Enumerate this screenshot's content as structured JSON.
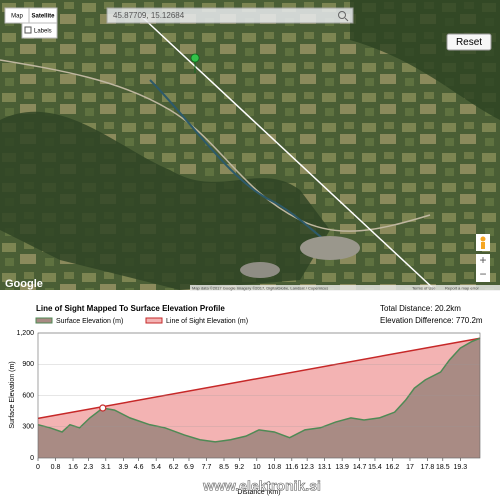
{
  "map": {
    "map_button": "Map",
    "satellite_button": "Satellite",
    "labels_checkbox": "Labels",
    "search": "45.87709, 15.12684",
    "reset_button": "Reset",
    "logo": "Google",
    "attribution": "Map data ©2017 Google Imagery ©2017, DigitalGlobe, Landsat / Copernicus",
    "terms": "Terms of Use",
    "report": "Report a map error"
  },
  "chart_data": {
    "type": "area",
    "title": "Line of Sight Mapped To Surface Elevation Profile",
    "total_distance": "Total Distance: 20.2km",
    "elevation_difference": "Elevation Difference: 770.2m",
    "x_label": "Distance (km)",
    "y_label": "Surface Elevation (m)",
    "xlim": [
      0,
      20.2
    ],
    "ylim": [
      0,
      1200
    ],
    "xticks": [
      0,
      0.8,
      1.6,
      2.3,
      3.1,
      3.9,
      4.6,
      5.4,
      6.2,
      6.9,
      7.7,
      8.5,
      9.2,
      10,
      10.8,
      11.6,
      12.3,
      13.1,
      13.9,
      14.7,
      15.4,
      16.2,
      17,
      17.8,
      18.5,
      19.3
    ],
    "yticks": [
      0,
      300,
      600,
      900,
      {
        "value": 1200,
        "label": "1,200"
      }
    ],
    "grid": true,
    "series": [
      {
        "name": "Line of Sight Elevation (m)",
        "color": "#c62828",
        "fill": "#f3b3b3",
        "x": [
          0,
          20.2
        ],
        "values": [
          380,
          1150
        ]
      },
      {
        "name": "Surface Elevation (m)",
        "color": "#4f8a55",
        "fill": "#a98b84",
        "x": [
          0,
          0.55,
          1.1,
          1.46,
          1.9,
          2.37,
          2.96,
          3.5,
          4.2,
          5.1,
          5.8,
          6.7,
          7.4,
          8.1,
          8.8,
          9.5,
          10.1,
          10.8,
          11.5,
          12.2,
          12.9,
          13.6,
          14.3,
          14.9,
          15.6,
          16.3,
          16.8,
          17.2,
          17.7,
          18.4,
          18.8,
          19.3,
          19.8,
          20.2
        ],
        "values": [
          320,
          290,
          250,
          320,
          290,
          385,
          480,
          460,
          385,
          320,
          290,
          220,
          175,
          155,
          175,
          210,
          270,
          250,
          195,
          270,
          290,
          345,
          385,
          365,
          385,
          440,
          555,
          670,
          750,
          825,
          940,
          1055,
          1115,
          1150
        ]
      }
    ],
    "obstruction": {
      "x": 2.96,
      "value": 480
    }
  },
  "watermark": "www.elektronik.si"
}
